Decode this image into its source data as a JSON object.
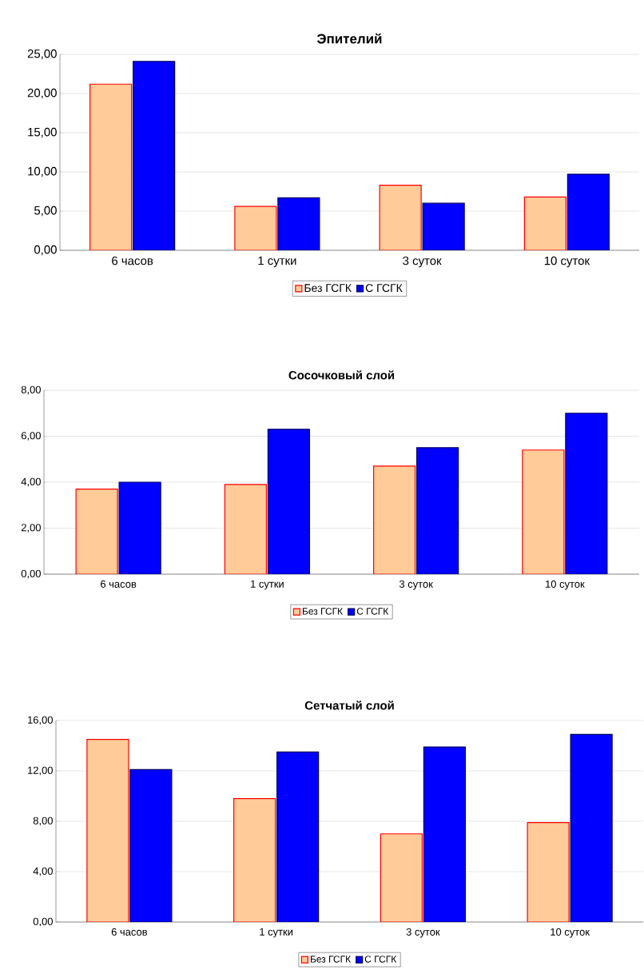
{
  "chart_data": [
    {
      "type": "bar",
      "title": "Эпителий",
      "categories": [
        "6 часов",
        "1 сутки",
        "3 суток",
        "10 суток"
      ],
      "series": [
        {
          "name": "Без ГСГК",
          "color": "#ffcc99",
          "values": [
            21.2,
            5.6,
            8.3,
            6.8
          ]
        },
        {
          "name": "С ГСГК",
          "color": "#0000ff",
          "values": [
            24.1,
            6.7,
            6.0,
            9.7
          ]
        }
      ],
      "ylim": [
        0,
        25
      ],
      "yticks": [
        {
          "value": 0,
          "label": "0,00"
        },
        {
          "value": 5,
          "label": "5,00"
        },
        {
          "value": 10,
          "label": "10,00"
        },
        {
          "value": 15,
          "label": "15,00"
        },
        {
          "value": 20,
          "label": "20,00"
        },
        {
          "value": 25,
          "label": "25,00"
        }
      ],
      "grid": "y",
      "legend": "bottom"
    },
    {
      "type": "bar",
      "title": "Сосочковый слой",
      "categories": [
        "6 часов",
        "1 сутки",
        "3 суток",
        "10 суток"
      ],
      "series": [
        {
          "name": "Без ГСГК",
          "color": "#ffcc99",
          "values": [
            3.7,
            3.9,
            4.7,
            5.4
          ]
        },
        {
          "name": "С ГСГК",
          "color": "#0000ff",
          "values": [
            4.0,
            6.3,
            5.5,
            7.0
          ]
        }
      ],
      "ylim": [
        0,
        8
      ],
      "yticks": [
        {
          "value": 0,
          "label": "0,00"
        },
        {
          "value": 2,
          "label": "2,00"
        },
        {
          "value": 4,
          "label": "4,00"
        },
        {
          "value": 6,
          "label": "6,00"
        },
        {
          "value": 8,
          "label": "8,00"
        }
      ],
      "grid": "y",
      "legend": "bottom"
    },
    {
      "type": "bar",
      "title": "Сетчатый слой",
      "categories": [
        "6 часов",
        "1 сутки",
        "3 суток",
        "10 суток"
      ],
      "series": [
        {
          "name": "Без ГСГК",
          "color": "#ffcc99",
          "values": [
            14.5,
            9.8,
            7.0,
            7.9
          ]
        },
        {
          "name": "С ГСГК",
          "color": "#0000ff",
          "values": [
            12.1,
            13.5,
            13.9,
            14.9
          ]
        }
      ],
      "ylim": [
        0,
        16
      ],
      "yticks": [
        {
          "value": 0,
          "label": "0,00"
        },
        {
          "value": 4,
          "label": "4,00"
        },
        {
          "value": 8,
          "label": "8,00"
        },
        {
          "value": 12,
          "label": "12,00"
        },
        {
          "value": 16,
          "label": "16,00"
        }
      ],
      "grid": "y",
      "legend": "bottom"
    }
  ]
}
